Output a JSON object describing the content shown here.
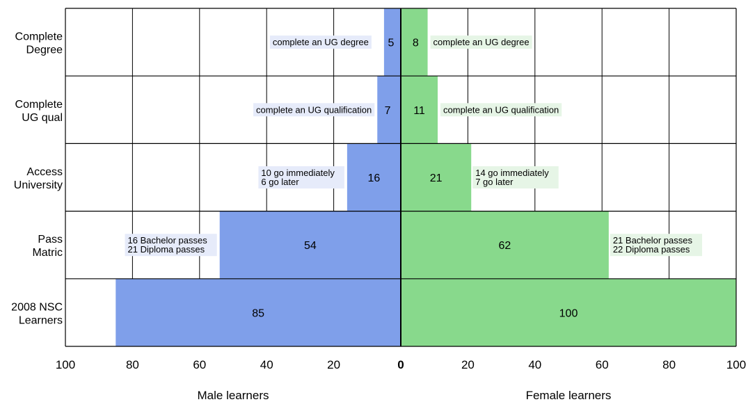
{
  "chart_data": {
    "type": "bar",
    "orientation": "horizontal-diverging",
    "categories": [
      [
        "2008 NSC",
        "Learners"
      ],
      [
        "Pass",
        "Matric"
      ],
      [
        "Access",
        "University"
      ],
      [
        "Complete",
        "UG qual"
      ],
      [
        "Complete",
        "Degree"
      ]
    ],
    "series": [
      {
        "name": "Male learners",
        "side": "left",
        "color": "#7f9fea",
        "label_bg": "#e6ebfa",
        "values": [
          85,
          54,
          16,
          7,
          5
        ]
      },
      {
        "name": "Female learners",
        "side": "right",
        "color": "#88d98c",
        "label_bg": "#e6f5e6",
        "values": [
          100,
          62,
          21,
          11,
          8
        ]
      }
    ],
    "annotations": {
      "left": [
        null,
        [
          "16 Bachelor passes",
          "21 Diploma passes"
        ],
        [
          "10 go immediately",
          "6 go later"
        ],
        [
          "complete an UG qualification"
        ],
        [
          "complete an UG degree"
        ]
      ],
      "right": [
        null,
        [
          "21 Bachelor passes",
          "22 Diploma passes"
        ],
        [
          "14 go immediately",
          "7 go later"
        ],
        [
          "complete an UG qualification"
        ],
        [
          "complete an UG degree"
        ]
      ]
    },
    "x_ticks_left": [
      "100",
      "80",
      "60",
      "40",
      "20",
      "0"
    ],
    "x_ticks_right": [
      "0",
      "20",
      "40",
      "60",
      "80",
      "100"
    ],
    "xlim": [
      -100,
      100
    ],
    "xlabel_left": "Male learners",
    "xlabel_right": "Female learners",
    "grid": true,
    "title": ""
  }
}
